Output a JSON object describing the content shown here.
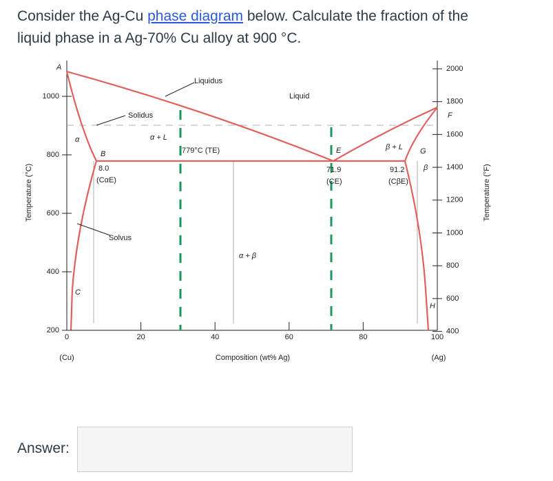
{
  "question": {
    "text_before": "Consider the Ag-Cu ",
    "link": "phase diagram",
    "text_after": " below. Calculate the fraction of the",
    "line2": "liquid phase in a Ag-70% Cu alloy at 900 °C."
  },
  "diagram": {
    "left_axis": {
      "title": "Temperature (°C)",
      "ticks": [
        "1000",
        "800",
        "600",
        "400",
        "200"
      ]
    },
    "right_axis": {
      "title": "Temperature (°F)",
      "ticks": [
        "2000",
        "1800",
        "1600",
        "1400",
        "1200",
        "1000",
        "800",
        "600",
        "400"
      ]
    },
    "x_axis": {
      "title": "Composition (wt% Ag)",
      "ticks": [
        "0",
        "20",
        "40",
        "60",
        "80",
        "100"
      ],
      "left_end": "(Cu)",
      "right_end": "(Ag)"
    },
    "labels": {
      "a": "A",
      "f": "F",
      "liquidus": "Liquidus",
      "liquid": "Liquid",
      "solidus": "Solidus",
      "alpha_l": "α + L",
      "eutectic": "779°C (TE)",
      "e": "E",
      "beta_l": "β + L",
      "g": "G",
      "b": "B",
      "cae_value": "8.0",
      "cae": "(CαE)",
      "ce_value": "71.9",
      "ce": "(CE)",
      "cbe_value": "91.2",
      "cbe": "(CβE)",
      "beta": "β",
      "alpha": "α",
      "solvus": "Solvus",
      "alpha_beta": "α + β",
      "c": "C",
      "h": "H"
    }
  },
  "answer": {
    "label": "Answer:"
  }
}
